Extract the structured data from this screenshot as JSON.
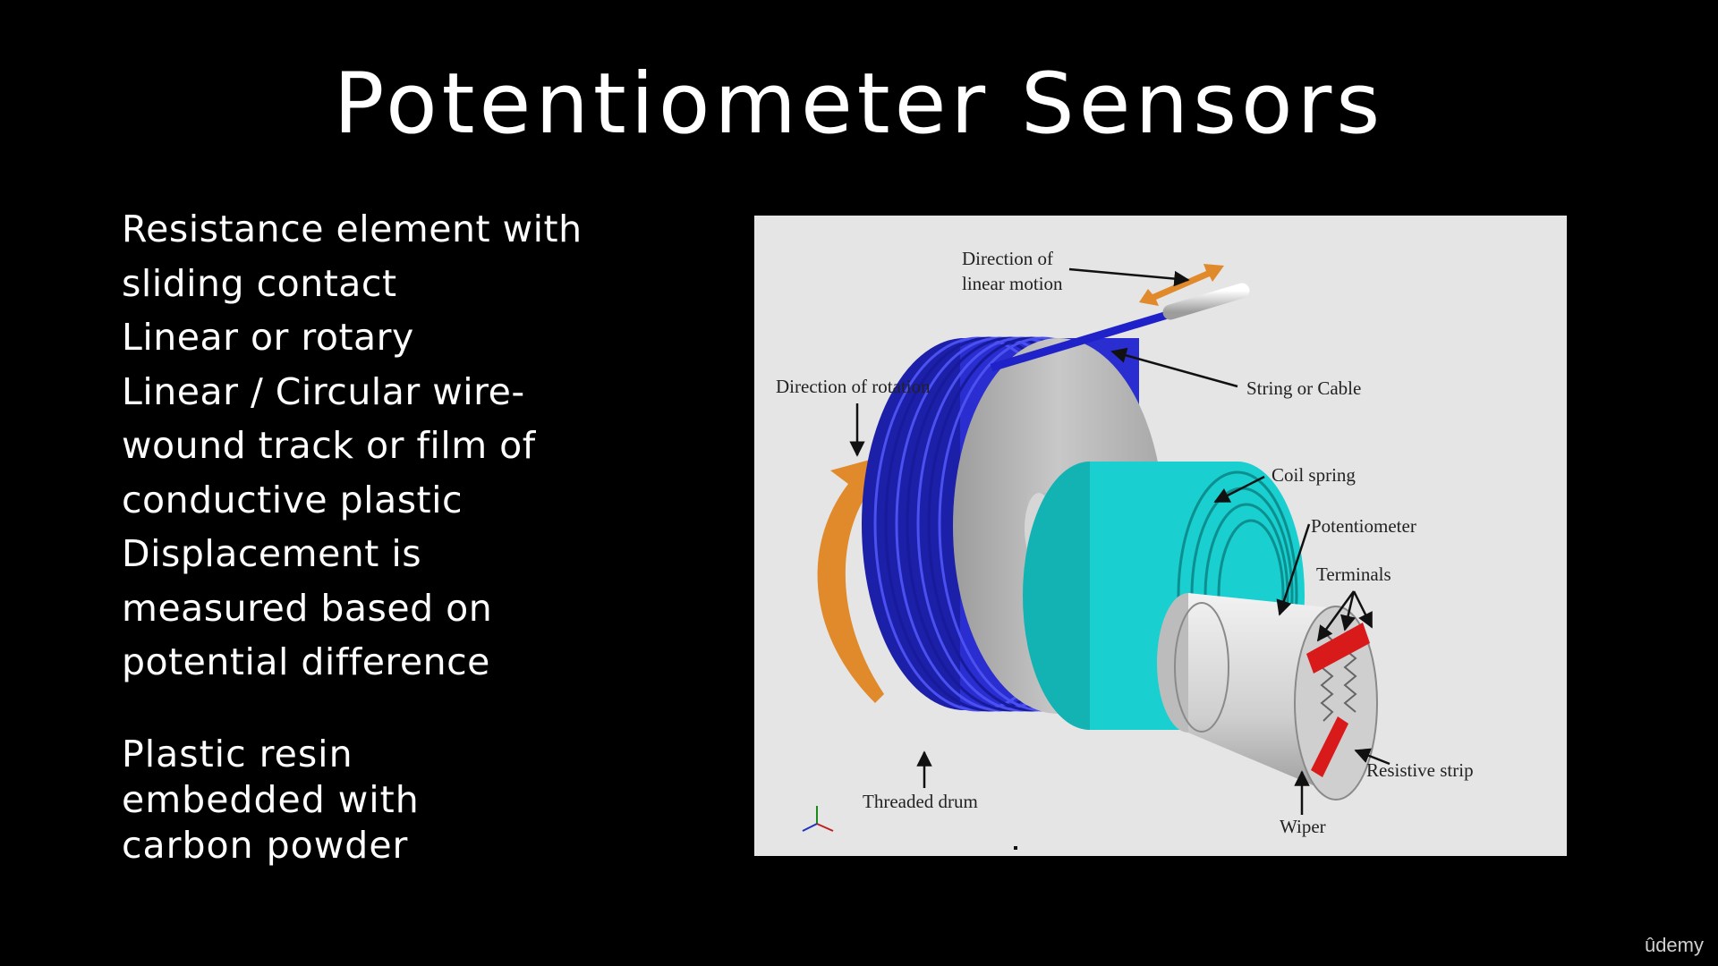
{
  "slide": {
    "title": "Potentiometer Sensors",
    "bullets": [
      "Resistance element with",
      "sliding contact",
      "Linear or rotary",
      "Linear / Circular wire-",
      "wound track or film of",
      "conductive plastic",
      "Displacement is",
      "measured based on",
      "potential difference"
    ],
    "note": [
      "Plastic resin",
      "embedded with",
      "carbon powder"
    ]
  },
  "figure": {
    "labels": {
      "linear_motion_1": "Direction of",
      "linear_motion_2": "linear motion",
      "rotation": "Direction of rotation",
      "string": "String or Cable",
      "coil_spring": "Coil spring",
      "potentiometer": "Potentiometer",
      "terminals": "Terminals",
      "resistive_strip": "Resistive strip",
      "wiper": "Wiper",
      "threaded_drum": "Threaded drum"
    },
    "colors": {
      "background": "#e5e5e5",
      "drum": "#2a2ed0",
      "spring": "#19cfcf",
      "arrow": "#e08a2c",
      "terminals": "#d91a1a"
    }
  },
  "brand": "ûdemy"
}
